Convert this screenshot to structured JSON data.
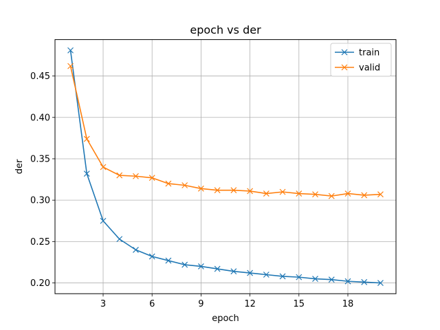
{
  "chart_data": {
    "type": "line",
    "title": "epoch vs der",
    "xlabel": "epoch",
    "ylabel": "der",
    "xlim": [
      0.05,
      20.95
    ],
    "ylim": [
      0.187,
      0.494
    ],
    "xticks": [
      3,
      6,
      9,
      12,
      15,
      18
    ],
    "yticks": [
      0.2,
      0.25,
      0.3,
      0.35,
      0.4,
      0.45
    ],
    "ytick_labels": [
      "0.20",
      "0.25",
      "0.30",
      "0.35",
      "0.40",
      "0.45"
    ],
    "grid": true,
    "legend_position": "top-right",
    "x": [
      1,
      2,
      3,
      4,
      5,
      6,
      7,
      8,
      9,
      10,
      11,
      12,
      13,
      14,
      15,
      16,
      17,
      18,
      19,
      20
    ],
    "series": [
      {
        "name": "train",
        "color": "#1f77b4",
        "marker": "x",
        "values": [
          0.481,
          0.332,
          0.275,
          0.253,
          0.24,
          0.232,
          0.227,
          0.222,
          0.22,
          0.217,
          0.214,
          0.212,
          0.21,
          0.208,
          0.207,
          0.205,
          0.204,
          0.202,
          0.201,
          0.2
        ]
      },
      {
        "name": "valid",
        "color": "#ff7f0e",
        "marker": "x",
        "values": [
          0.462,
          0.374,
          0.34,
          0.33,
          0.329,
          0.327,
          0.32,
          0.318,
          0.314,
          0.312,
          0.312,
          0.311,
          0.308,
          0.31,
          0.308,
          0.307,
          0.305,
          0.308,
          0.306,
          0.307
        ]
      }
    ]
  }
}
